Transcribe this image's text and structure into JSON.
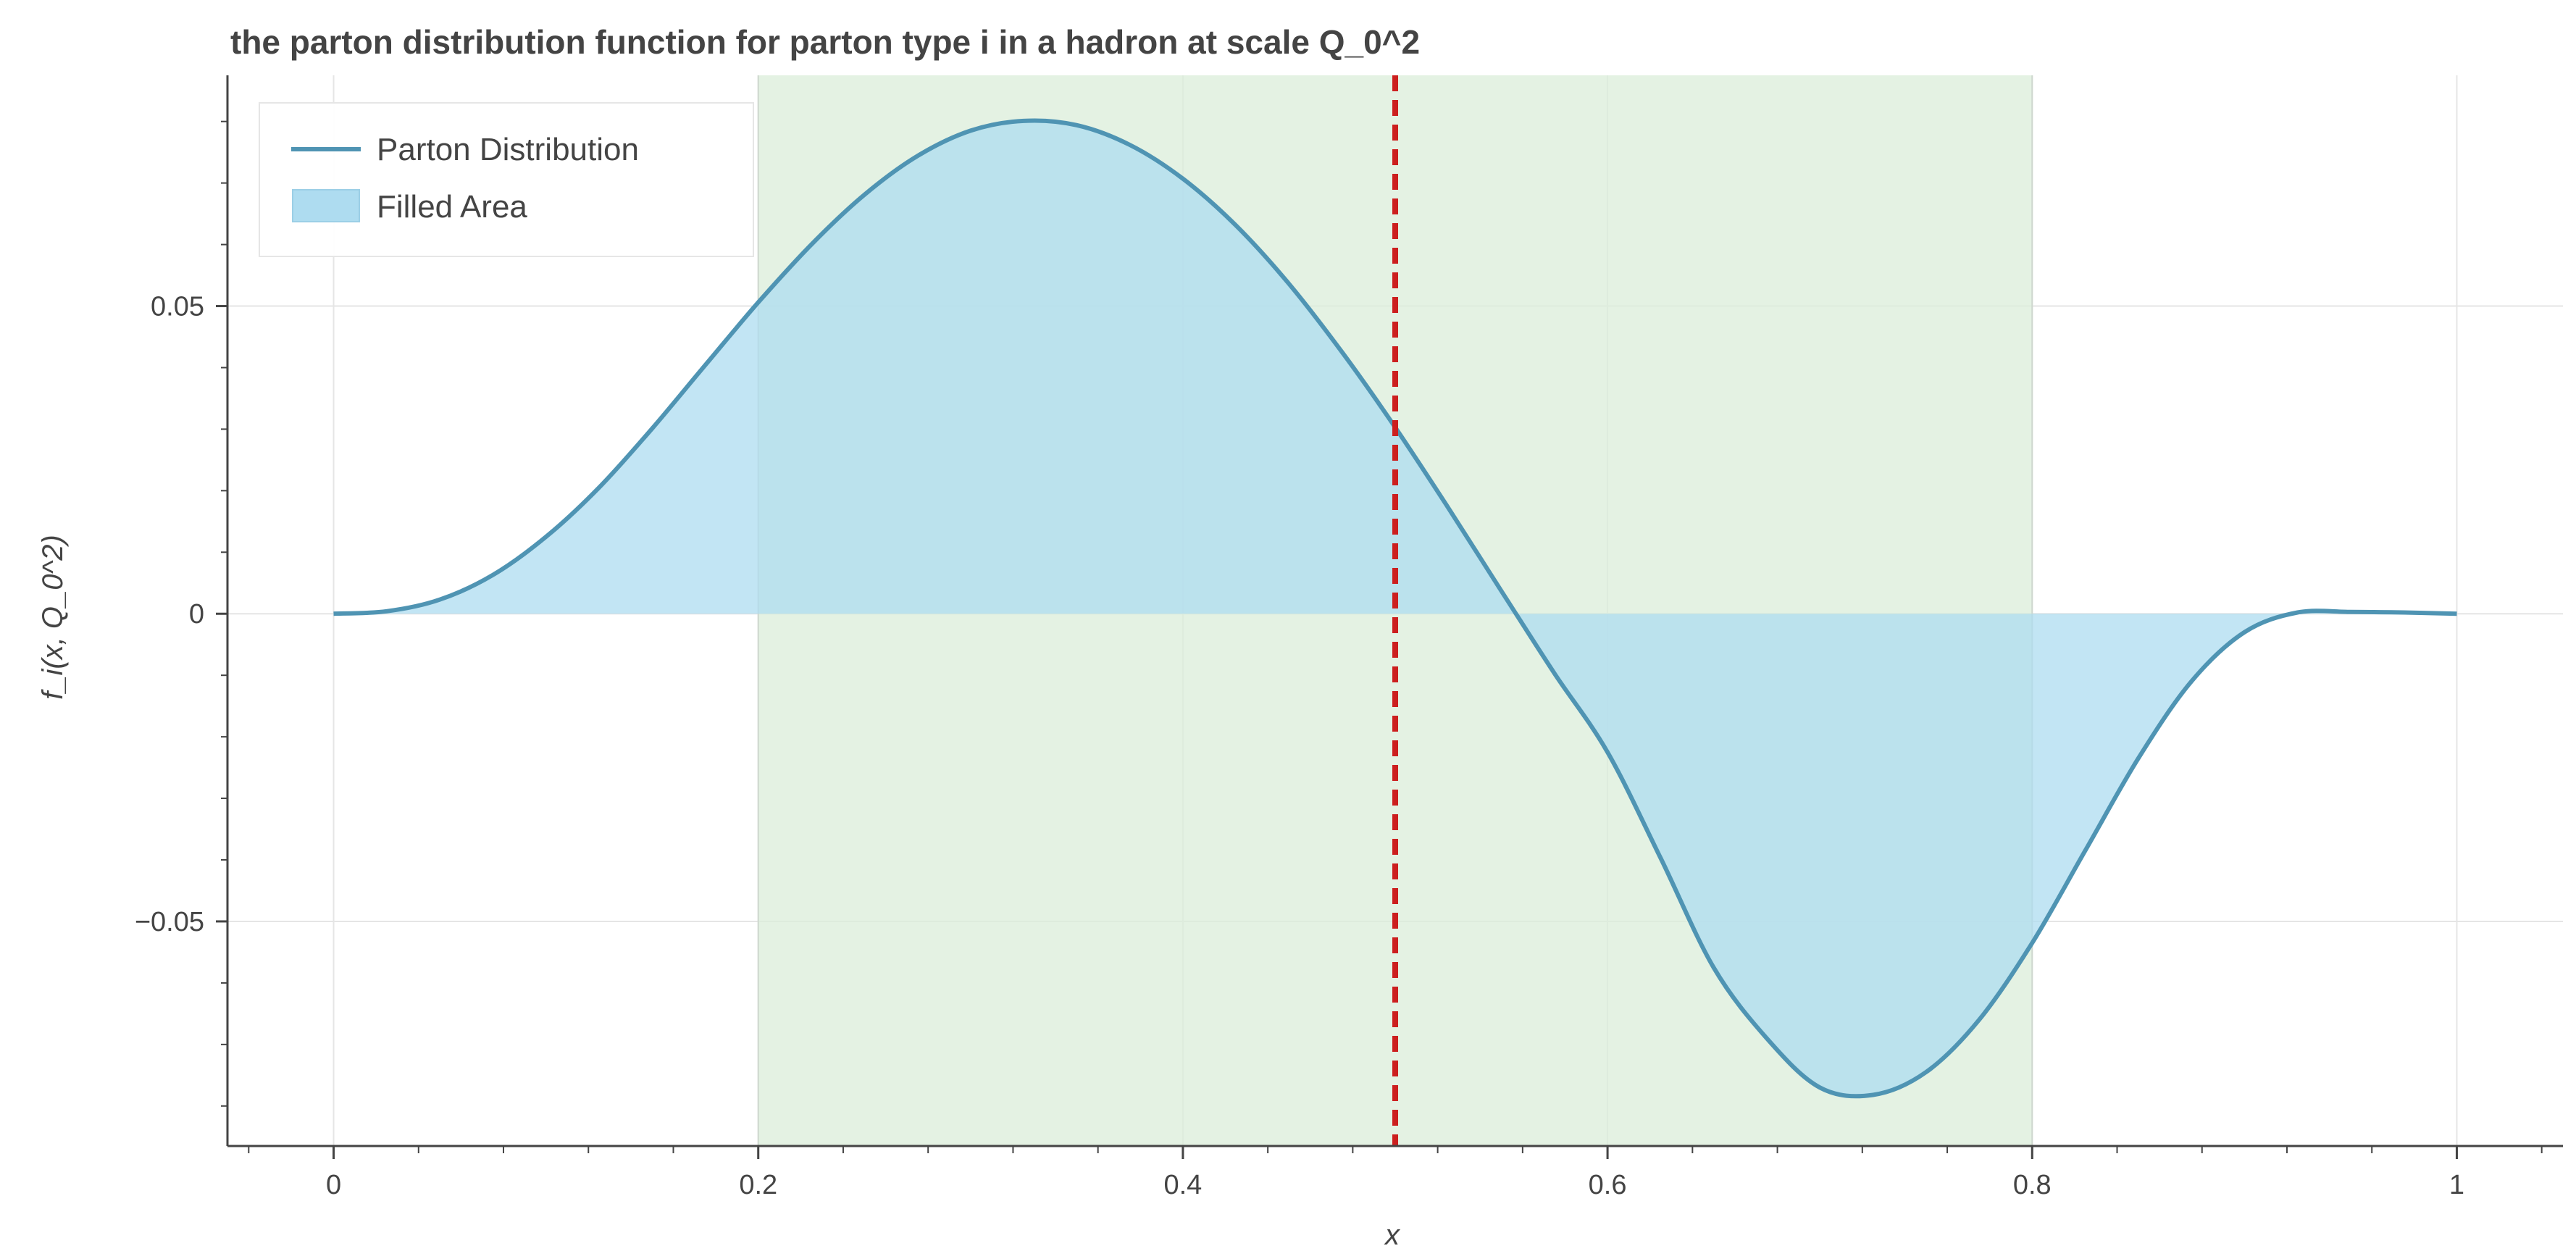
{
  "chart_data": {
    "type": "line",
    "title": "the parton distribution function for parton type i in a hadron at scale Q_0^2",
    "xlabel": "x",
    "ylabel": "f_i(x, Q_0^2)",
    "xlim": [
      -0.05,
      1.05
    ],
    "ylim": [
      -0.0865,
      0.0875
    ],
    "x_ticks": [
      0,
      0.2,
      0.4,
      0.6,
      0.8,
      1
    ],
    "x_tick_labels": [
      "0",
      "0.2",
      "0.4",
      "0.6",
      "0.8",
      "1"
    ],
    "y_ticks": [
      -0.05,
      0,
      0.05
    ],
    "y_tick_labels": [
      "−0.05",
      "0",
      "0.05"
    ],
    "grid": true,
    "legend_position": "top-left",
    "series": [
      {
        "name": "Parton Distribution",
        "style": "line",
        "color": "#4f94b3",
        "x": [
          0,
          0.025,
          0.05,
          0.075,
          0.1,
          0.125,
          0.15,
          0.175,
          0.2,
          0.225,
          0.25,
          0.275,
          0.3,
          0.325,
          0.35,
          0.375,
          0.4,
          0.425,
          0.45,
          0.475,
          0.5,
          0.525,
          0.55,
          0.575,
          0.6,
          0.625,
          0.65,
          0.675,
          0.7,
          0.725,
          0.75,
          0.775,
          0.8,
          0.825,
          0.85,
          0.875,
          0.9,
          0.925,
          0.95,
          0.975,
          1
        ],
        "y": [
          0,
          0.0004,
          0.0023,
          0.0063,
          0.0125,
          0.0205,
          0.0301,
          0.0404,
          0.0506,
          0.06,
          0.0681,
          0.0744,
          0.0785,
          0.0801,
          0.0794,
          0.0762,
          0.0707,
          0.0631,
          0.0536,
          0.0425,
          0.0303,
          0.0172,
          0.0037,
          -0.0097,
          -0.0225,
          -0.0397,
          -0.0575,
          -0.069,
          -0.077,
          -0.0782,
          -0.0745,
          -0.066,
          -0.0535,
          -0.0385,
          -0.0235,
          -0.011,
          -0.003,
          0.0002,
          0.0003,
          0.0002,
          0
        ]
      },
      {
        "name": "Filled Area",
        "style": "area",
        "color": "#aedcf0"
      }
    ],
    "annotations": [
      {
        "type": "vertical_band",
        "x_range": [
          0.2,
          0.8
        ],
        "color": "#dbeed9"
      },
      {
        "type": "vertical_line",
        "x": 0.5,
        "color": "#cc1f1f",
        "style": "dashed"
      }
    ]
  }
}
